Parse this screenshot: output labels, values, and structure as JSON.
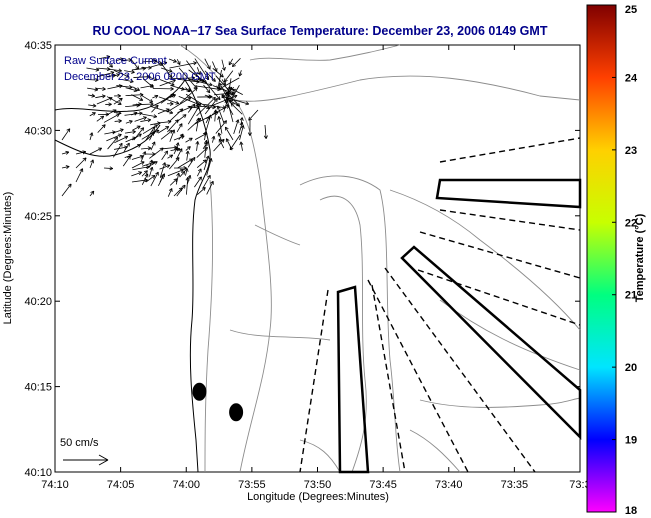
{
  "chart_data": {
    "type": "map",
    "title": "RU COOL  NOAA−17  Sea Surface Temperature:  December 23, 2006 0149 GMT",
    "xlabel": "Longitude (Degrees:Minutes)",
    "ylabel": "Latitude (Degrees:Minutes)",
    "x_ticks": [
      "74:10",
      "74:05",
      "74:00",
      "73:55",
      "73:50",
      "73:45",
      "73:40",
      "73:35",
      "73:3"
    ],
    "y_ticks": [
      "40:35",
      "40:30",
      "40:25",
      "40:20",
      "40:15",
      "40:10"
    ],
    "xlim": [
      -74.1667,
      -73.5
    ],
    "ylim": [
      40.1667,
      40.5833
    ],
    "colorbar": {
      "label": "Temperature (°C)",
      "range": [
        18,
        25
      ],
      "ticks": [
        "25",
        "24",
        "23",
        "22",
        "21",
        "20",
        "19",
        "18"
      ],
      "colors": [
        "#ff00ff",
        "#0000ff",
        "#00e5ff",
        "#00ff80",
        "#c8ff00",
        "#ffd000",
        "#ff4000",
        "#800000"
      ]
    },
    "annotations": {
      "legend_line1": "Raw Surface Current",
      "legend_line2": "December 23, 2006 0200 GMT",
      "scale_label": "50 cm/s"
    },
    "markers": [
      {
        "label": "buoy",
        "lon": -73.9833,
        "lat": 40.245
      },
      {
        "label": "buoy",
        "lon": -73.9367,
        "lat": 40.225
      }
    ],
    "title_color": "#00008b"
  }
}
